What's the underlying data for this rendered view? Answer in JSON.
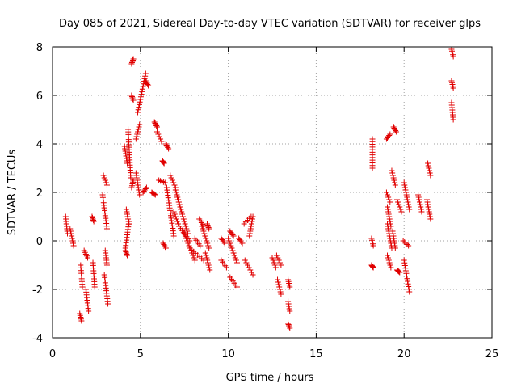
{
  "chart_data": {
    "type": "scatter",
    "title": "Day 085 of 2021, Sidereal Day-to-day VTEC variation (SDTVAR) for receiver glps",
    "xlabel": "GPS time / hours",
    "ylabel": "SDTVAR / TECUs",
    "xlim": [
      0,
      25
    ],
    "ylim": [
      -4,
      8
    ],
    "xticks": [
      0,
      5,
      10,
      15,
      20,
      25
    ],
    "yticks": [
      -4,
      -2,
      0,
      2,
      4,
      6,
      8
    ],
    "grid": true,
    "marker": "plus",
    "color": "#e00000",
    "segments": [
      {
        "x": [
          0.75,
          0.85
        ],
        "y": [
          1.0,
          0.3
        ]
      },
      {
        "x": [
          1.0,
          1.2
        ],
        "y": [
          0.5,
          -0.2
        ]
      },
      {
        "x": [
          1.55,
          1.65
        ],
        "y": [
          -3.0,
          -3.3
        ]
      },
      {
        "x": [
          1.6,
          1.7
        ],
        "y": [
          -1.0,
          -1.9
        ]
      },
      {
        "x": [
          1.8,
          2.0
        ],
        "y": [
          -0.4,
          -0.7
        ]
      },
      {
        "x": [
          1.9,
          2.05
        ],
        "y": [
          -2.0,
          -2.9
        ]
      },
      {
        "x": [
          2.25,
          2.35
        ],
        "y": [
          1.0,
          0.8
        ]
      },
      {
        "x": [
          2.3,
          2.4
        ],
        "y": [
          -0.9,
          -1.9
        ]
      },
      {
        "x": [
          2.85,
          3.1
        ],
        "y": [
          1.9,
          0.5
        ]
      },
      {
        "x": [
          2.9,
          3.1
        ],
        "y": [
          2.7,
          2.3
        ]
      },
      {
        "x": [
          2.95,
          3.15
        ],
        "y": [
          -1.4,
          -2.6
        ]
      },
      {
        "x": [
          3.0,
          3.1
        ],
        "y": [
          -0.4,
          -1.0
        ]
      },
      {
        "x": [
          4.1,
          4.25
        ],
        "y": [
          3.9,
          3.2
        ]
      },
      {
        "x": [
          4.15,
          4.35
        ],
        "y": [
          -0.3,
          0.8
        ]
      },
      {
        "x": [
          4.2,
          4.35
        ],
        "y": [
          1.3,
          0.7
        ]
      },
      {
        "x": [
          4.3,
          4.45
        ],
        "y": [
          4.6,
          2.6
        ]
      },
      {
        "x": [
          4.15,
          4.25
        ],
        "y": [
          -0.4,
          -0.6
        ]
      },
      {
        "x": [
          4.5,
          4.6
        ],
        "y": [
          2.2,
          2.5
        ]
      },
      {
        "x": [
          4.5,
          4.6
        ],
        "y": [
          7.3,
          7.5
        ]
      },
      {
        "x": [
          4.5,
          4.6
        ],
        "y": [
          6.0,
          5.8
        ]
      },
      {
        "x": [
          4.75,
          4.95
        ],
        "y": [
          2.8,
          1.9
        ]
      },
      {
        "x": [
          4.75,
          4.95
        ],
        "y": [
          4.2,
          4.8
        ]
      },
      {
        "x": [
          4.85,
          5.3
        ],
        "y": [
          5.3,
          6.9
        ]
      },
      {
        "x": [
          5.15,
          5.35
        ],
        "y": [
          2.0,
          2.2
        ]
      },
      {
        "x": [
          5.3,
          5.45
        ],
        "y": [
          6.6,
          6.4
        ]
      },
      {
        "x": [
          5.65,
          5.85
        ],
        "y": [
          2.0,
          1.9
        ]
      },
      {
        "x": [
          5.8,
          5.95
        ],
        "y": [
          4.9,
          4.7
        ]
      },
      {
        "x": [
          5.95,
          6.2
        ],
        "y": [
          4.5,
          4.1
        ]
      },
      {
        "x": [
          6.05,
          6.4
        ],
        "y": [
          2.5,
          2.4
        ]
      },
      {
        "x": [
          6.25,
          6.35
        ],
        "y": [
          3.3,
          3.2
        ]
      },
      {
        "x": [
          6.3,
          6.45
        ],
        "y": [
          -0.1,
          -0.3
        ]
      },
      {
        "x": [
          6.45,
          6.6
        ],
        "y": [
          4.0,
          3.8
        ]
      },
      {
        "x": [
          6.5,
          6.9
        ],
        "y": [
          2.2,
          0.2
        ]
      },
      {
        "x": [
          6.7,
          7.0
        ],
        "y": [
          2.7,
          2.2
        ]
      },
      {
        "x": [
          6.9,
          7.2
        ],
        "y": [
          1.2,
          0.6
        ]
      },
      {
        "x": [
          7.0,
          7.3
        ],
        "y": [
          2.1,
          1.3
        ]
      },
      {
        "x": [
          7.1,
          7.7
        ],
        "y": [
          1.8,
          0.3
        ]
      },
      {
        "x": [
          7.2,
          7.8
        ],
        "y": [
          0.6,
          0.0
        ]
      },
      {
        "x": [
          7.5,
          8.1
        ],
        "y": [
          0.3,
          -0.8
        ]
      },
      {
        "x": [
          7.8,
          8.6
        ],
        "y": [
          -0.3,
          -0.8
        ]
      },
      {
        "x": [
          8.1,
          8.4
        ],
        "y": [
          0.1,
          -0.2
        ]
      },
      {
        "x": [
          8.35,
          8.6
        ],
        "y": [
          0.9,
          0.6
        ]
      },
      {
        "x": [
          8.5,
          8.9
        ],
        "y": [
          0.6,
          -0.3
        ]
      },
      {
        "x": [
          8.7,
          8.95
        ],
        "y": [
          -0.5,
          -1.2
        ]
      },
      {
        "x": [
          8.8,
          8.9
        ],
        "y": [
          0.7,
          0.5
        ]
      },
      {
        "x": [
          9.6,
          9.8
        ],
        "y": [
          0.1,
          -0.1
        ]
      },
      {
        "x": [
          9.6,
          9.9
        ],
        "y": [
          -0.8,
          -1.1
        ]
      },
      {
        "x": [
          10.0,
          10.5
        ],
        "y": [
          0.1,
          -0.9
        ]
      },
      {
        "x": [
          10.1,
          10.3
        ],
        "y": [
          0.4,
          0.2
        ]
      },
      {
        "x": [
          10.1,
          10.5
        ],
        "y": [
          -1.5,
          -1.9
        ]
      },
      {
        "x": [
          10.6,
          10.8
        ],
        "y": [
          0.1,
          -0.1
        ]
      },
      {
        "x": [
          10.9,
          11.3
        ],
        "y": [
          0.7,
          1.0
        ]
      },
      {
        "x": [
          10.95,
          11.4
        ],
        "y": [
          -0.8,
          -1.4
        ]
      },
      {
        "x": [
          11.2,
          11.4
        ],
        "y": [
          0.2,
          1.0
        ]
      },
      {
        "x": [
          12.5,
          12.7
        ],
        "y": [
          -0.7,
          -1.1
        ]
      },
      {
        "x": [
          12.75,
          13.0
        ],
        "y": [
          -0.6,
          -1.0
        ]
      },
      {
        "x": [
          12.8,
          13.0
        ],
        "y": [
          -1.6,
          -2.2
        ]
      },
      {
        "x": [
          13.4,
          13.5
        ],
        "y": [
          -1.6,
          -1.9
        ]
      },
      {
        "x": [
          13.4,
          13.5
        ],
        "y": [
          -2.5,
          -2.9
        ]
      },
      {
        "x": [
          13.4,
          13.5
        ],
        "y": [
          -3.4,
          -3.6
        ]
      },
      {
        "x": [
          18.2,
          18.2
        ],
        "y": [
          4.2,
          3.0
        ]
      },
      {
        "x": [
          18.15,
          18.25
        ],
        "y": [
          0.1,
          -0.2
        ]
      },
      {
        "x": [
          18.15,
          18.25
        ],
        "y": [
          -1.0,
          -1.1
        ]
      },
      {
        "x": [
          19.0,
          19.2
        ],
        "y": [
          4.2,
          4.4
        ]
      },
      {
        "x": [
          19.0,
          19.2
        ],
        "y": [
          2.0,
          1.6
        ]
      },
      {
        "x": [
          19.05,
          19.25
        ],
        "y": [
          1.4,
          0.6
        ]
      },
      {
        "x": [
          19.05,
          19.3
        ],
        "y": [
          0.7,
          -0.3
        ]
      },
      {
        "x": [
          19.05,
          19.25
        ],
        "y": [
          -0.6,
          -1.1
        ]
      },
      {
        "x": [
          19.3,
          19.5
        ],
        "y": [
          2.9,
          2.3
        ]
      },
      {
        "x": [
          19.35,
          19.5
        ],
        "y": [
          0.4,
          -0.3
        ]
      },
      {
        "x": [
          19.4,
          19.55
        ],
        "y": [
          4.7,
          4.5
        ]
      },
      {
        "x": [
          19.6,
          19.85
        ],
        "y": [
          1.7,
          1.2
        ]
      },
      {
        "x": [
          19.6,
          19.75
        ],
        "y": [
          -1.2,
          -1.3
        ]
      },
      {
        "x": [
          20.0,
          20.3
        ],
        "y": [
          2.4,
          1.3
        ]
      },
      {
        "x": [
          19.95,
          20.25
        ],
        "y": [
          0.0,
          -0.2
        ]
      },
      {
        "x": [
          20.0,
          20.3
        ],
        "y": [
          -0.8,
          -2.1
        ]
      },
      {
        "x": [
          20.8,
          21.0
        ],
        "y": [
          1.9,
          1.2
        ]
      },
      {
        "x": [
          21.3,
          21.5
        ],
        "y": [
          1.7,
          0.9
        ]
      },
      {
        "x": [
          21.35,
          21.5
        ],
        "y": [
          3.2,
          2.7
        ]
      },
      {
        "x": [
          22.7,
          22.8
        ],
        "y": [
          7.9,
          7.6
        ]
      },
      {
        "x": [
          22.7,
          22.8
        ],
        "y": [
          6.6,
          6.3
        ]
      },
      {
        "x": [
          22.7,
          22.8
        ],
        "y": [
          5.7,
          5.0
        ]
      }
    ]
  }
}
